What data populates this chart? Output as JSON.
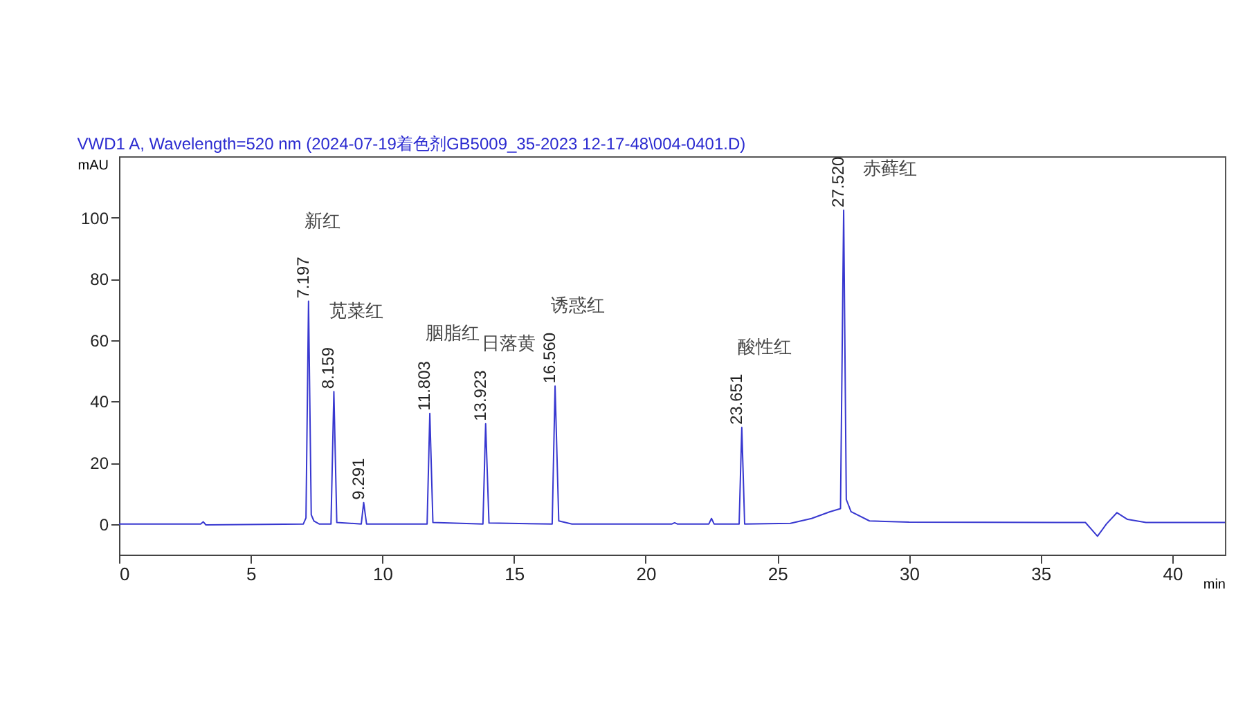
{
  "chart_data": {
    "type": "line",
    "title": "VWD1 A, Wavelength=520 nm (2024-07-19着色剂GB5009_35-2023  12-17-48\\004-0401.D)",
    "xlabel": "min",
    "ylabel": "mAU",
    "xlim": [
      0,
      42
    ],
    "xticks": [
      0,
      5,
      10,
      15,
      20,
      25,
      30,
      35,
      40
    ],
    "ylim": [
      -10,
      120
    ],
    "yticks": [
      0,
      20,
      40,
      60,
      80,
      100
    ],
    "grid": false,
    "legend": false,
    "series": [
      {
        "color": "#3838d0",
        "x": [
          0,
          3.1,
          3.2,
          3.3,
          7.0,
          7.1,
          7.197,
          7.3,
          7.4,
          7.6,
          8.05,
          8.159,
          8.27,
          9.2,
          9.291,
          9.4,
          11.7,
          11.803,
          11.92,
          13.82,
          13.923,
          14.05,
          16.45,
          16.56,
          16.7,
          17.2,
          21,
          21.1,
          21.2,
          22.4,
          22.5,
          22.6,
          23.55,
          23.651,
          23.76,
          25.5,
          26.3,
          27.0,
          27.4,
          27.52,
          27.62,
          27.8,
          28.5,
          30,
          36.7,
          37.16,
          37.5,
          37.9,
          38.3,
          39,
          42
        ],
        "values": [
          0,
          0,
          0.7,
          -0.3,
          0,
          2,
          72.7,
          3,
          1,
          0,
          0,
          43.2,
          0.5,
          0,
          7,
          0,
          0,
          36.1,
          0.5,
          0,
          32.7,
          0.3,
          0,
          45,
          1,
          0,
          0,
          0.4,
          0,
          0,
          1.8,
          0,
          0,
          31.5,
          0,
          0.2,
          1.8,
          4,
          5,
          102.4,
          8,
          4,
          1,
          0.6,
          0.5,
          -4,
          0,
          3.7,
          1.5,
          0.5,
          0.5
        ]
      }
    ],
    "annotations": [
      {
        "text": "7.197",
        "x": 7.197,
        "y": 72.7
      },
      "新红",
      {
        "text": "8.159",
        "x": 8.159,
        "y": 43.2
      },
      "苋菜红",
      {
        "text": "9.291",
        "x": 9.291,
        "y": 7
      },
      {
        "text": "11.803",
        "x": 11.803,
        "y": 36.1
      },
      "胭脂红",
      {
        "text": "13.923",
        "x": 13.923,
        "y": 32.7
      },
      "日落黄",
      {
        "text": "16.560",
        "x": 16.56,
        "y": 45
      },
      "诱惑红",
      {
        "text": "23.651",
        "x": 23.651,
        "y": 31.5
      },
      "酸性红",
      {
        "text": "27.520",
        "x": 27.52,
        "y": 102.4
      },
      "赤藓红"
    ]
  }
}
